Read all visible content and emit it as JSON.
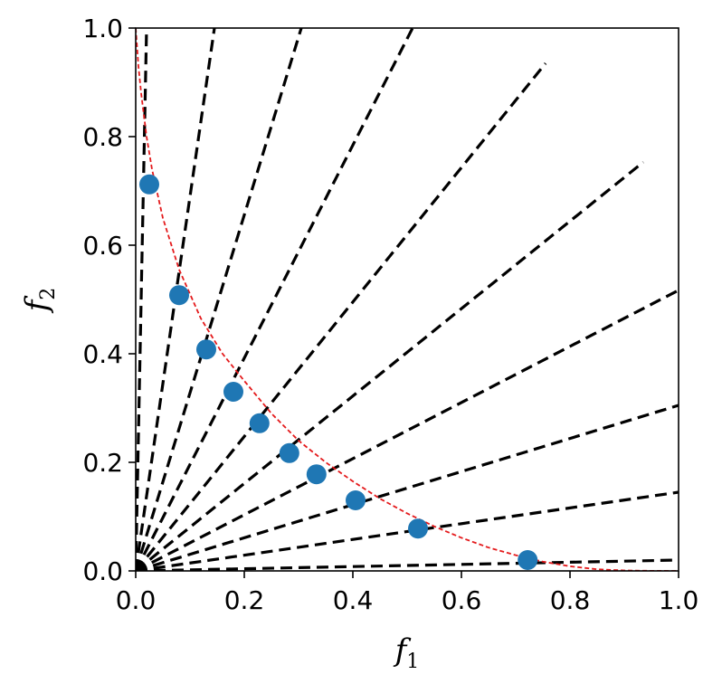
{
  "chart_data": {
    "type": "scatter",
    "xlabel": "f",
    "xlabel_sub": "1",
    "ylabel": "f",
    "ylabel_sub": "2",
    "xlim": [
      0,
      1
    ],
    "ylim": [
      0,
      1
    ],
    "xticks": [
      0.0,
      0.2,
      0.4,
      0.6,
      0.8,
      1.0
    ],
    "yticks": [
      0.0,
      0.2,
      0.4,
      0.6,
      0.8,
      1.0
    ],
    "xtick_labels": [
      "0.0",
      "0.2",
      "0.4",
      "0.6",
      "0.8",
      "1.0"
    ],
    "ytick_labels": [
      "0.0",
      "0.2",
      "0.4",
      "0.6",
      "0.8",
      "1.0"
    ],
    "grid": false,
    "colors": {
      "points": "#1f77b4",
      "front": "#e41a1c",
      "rays": "#000000"
    },
    "points": {
      "x": [
        0.025,
        0.08,
        0.13,
        0.18,
        0.228,
        0.283,
        0.333,
        0.405,
        0.52,
        0.722
      ],
      "y": [
        0.712,
        0.508,
        0.408,
        0.33,
        0.272,
        0.217,
        0.178,
        0.13,
        0.078,
        0.02
      ]
    },
    "front_curve": {
      "x": [
        0.0,
        0.005,
        0.01,
        0.02,
        0.03,
        0.05,
        0.08,
        0.12,
        0.16,
        0.2,
        0.25,
        0.3,
        0.35,
        0.4,
        0.45,
        0.5,
        0.55,
        0.6,
        0.65,
        0.7,
        0.75,
        0.8,
        0.85,
        0.9,
        0.95,
        1.0
      ],
      "y": [
        1.0,
        0.93,
        0.88,
        0.8,
        0.74,
        0.65,
        0.555,
        0.465,
        0.4,
        0.35,
        0.29,
        0.24,
        0.2,
        0.165,
        0.133,
        0.106,
        0.082,
        0.061,
        0.043,
        0.029,
        0.017,
        0.0085,
        0.003,
        0.0008,
        0.0001,
        0.0
      ]
    },
    "rays": [
      {
        "x_end": 0.02,
        "y_end": 1.0
      },
      {
        "x_end": 0.145,
        "y_end": 1.0
      },
      {
        "x_end": 0.305,
        "y_end": 1.0
      },
      {
        "x_end": 0.51,
        "y_end": 1.0
      },
      {
        "x_end": 0.755,
        "y_end": 0.935
      },
      {
        "x_end": 0.935,
        "y_end": 0.753
      },
      {
        "x_end": 1.0,
        "y_end": 0.517
      },
      {
        "x_end": 1.0,
        "y_end": 0.305
      },
      {
        "x_end": 1.0,
        "y_end": 0.145
      },
      {
        "x_end": 1.0,
        "y_end": 0.02
      }
    ]
  }
}
